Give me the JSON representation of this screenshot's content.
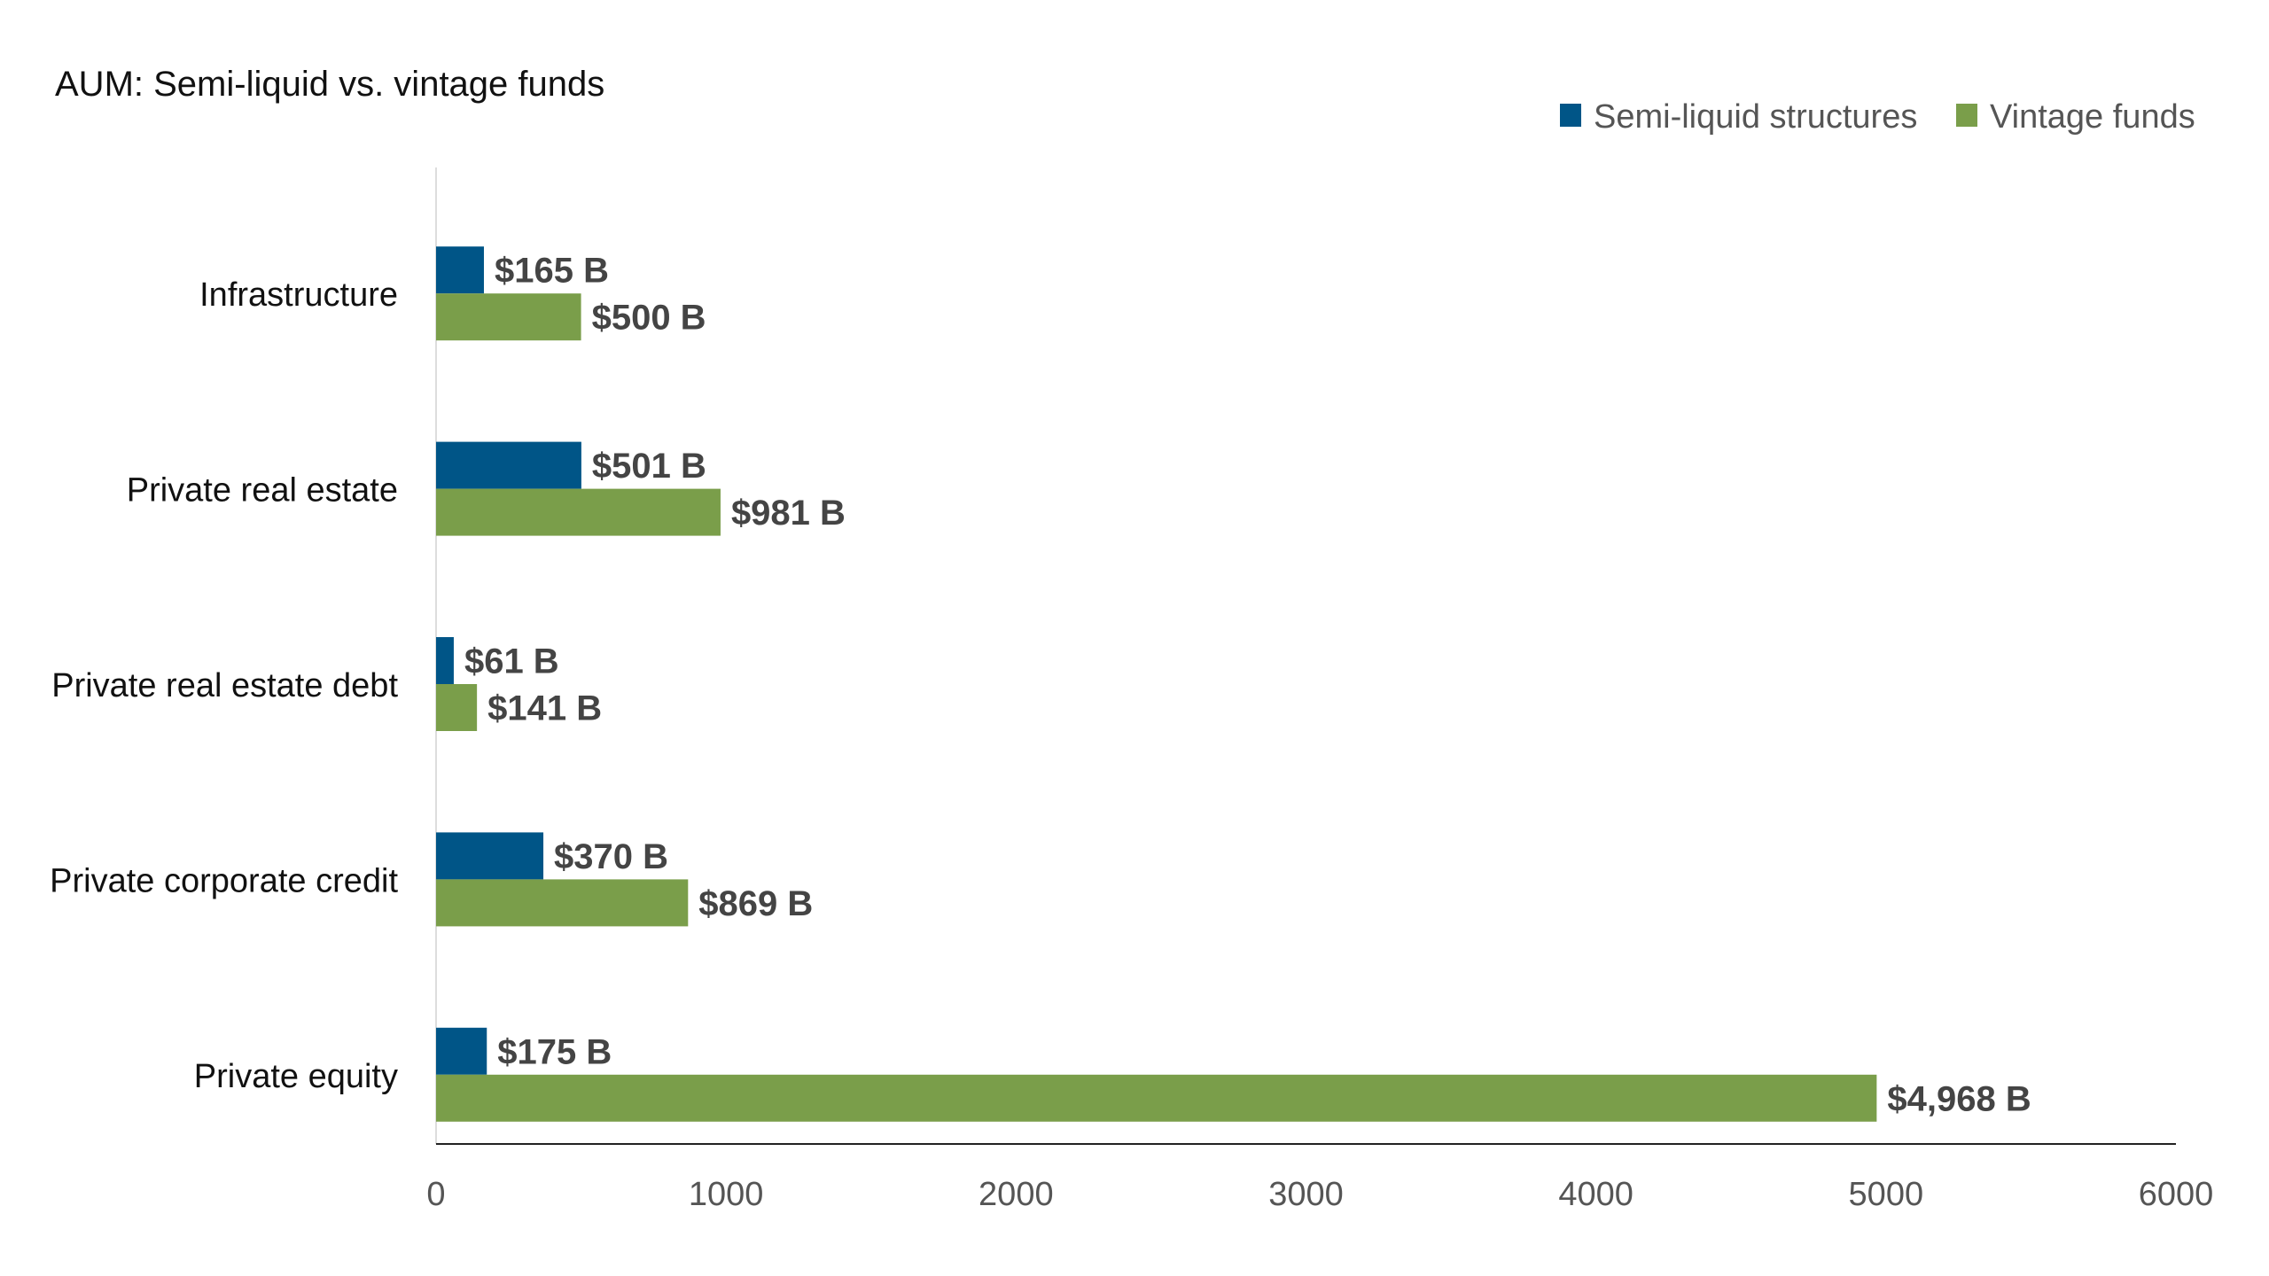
{
  "chart_data": {
    "type": "bar",
    "orientation": "horizontal",
    "title": "AUM: Semi-liquid vs. vintage funds",
    "categories": [
      "Infrastructure",
      "Private real estate",
      "Private real estate debt",
      "Private corporate credit",
      "Private equity"
    ],
    "series": [
      {
        "name": "Semi-liquid structures",
        "color": "#005587",
        "values": [
          165,
          501,
          61,
          370,
          175
        ],
        "labels": [
          "$165 B",
          "$501 B",
          "$61 B",
          "$370 B",
          "$175 B"
        ]
      },
      {
        "name": "Vintage funds",
        "color": "#7a9e4a",
        "values": [
          500,
          981,
          141,
          869,
          4968
        ],
        "labels": [
          "$500 B",
          "$981 B",
          "$141 B",
          "$869 B",
          "$4,968 B"
        ]
      }
    ],
    "xlim": [
      0,
      6000
    ],
    "xticks": [
      "0",
      "1000",
      "2000",
      "3000",
      "4000",
      "5000",
      "6000"
    ],
    "grid": false,
    "legend_position": "top-right"
  }
}
